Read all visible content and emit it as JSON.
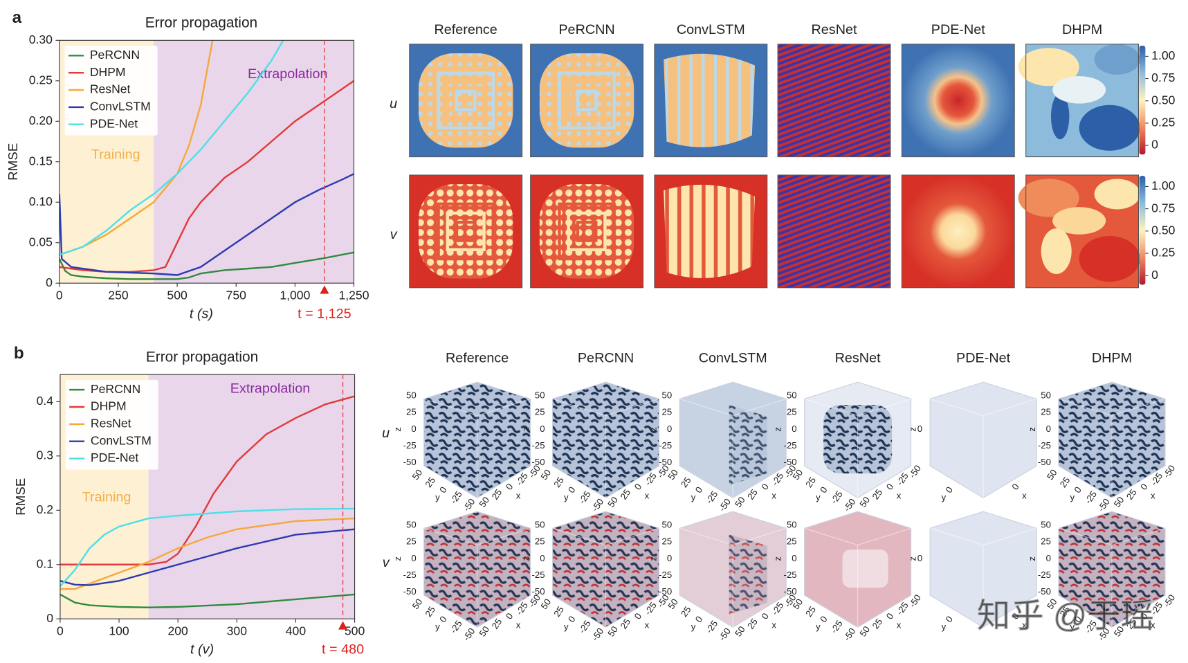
{
  "panel_labels": [
    "a",
    "b"
  ],
  "chart_data": [
    {
      "type": "line",
      "title": "Error propagation",
      "xlabel": "t (s)",
      "ylabel": "RMSE",
      "xlim": [
        0,
        1250
      ],
      "ylim": [
        0,
        0.3
      ],
      "xticks": [
        0,
        250,
        500,
        750,
        {
          "value": 1000,
          "label": "1,000"
        },
        {
          "value": 1250,
          "label": "1,250"
        }
      ],
      "yticks": [
        0,
        0.05,
        {
          "value": 0.1,
          "label": "0.10"
        },
        0.15,
        {
          "value": 0.2,
          "label": "0.20"
        },
        0.25,
        {
          "value": 0.3,
          "label": "0.30"
        }
      ],
      "legend": "upper left",
      "regions": [
        {
          "label": "Training",
          "x": [
            0,
            400
          ],
          "color": "#fdf0d3"
        },
        {
          "label": "Extrapolation",
          "x": [
            400,
            1250
          ],
          "color": "#ead6ea"
        }
      ],
      "annotations": [
        {
          "text": "t = 1,125",
          "x": 1125
        }
      ],
      "series": [
        {
          "name": "PeRCNN",
          "color": "#2e8b3e",
          "x": [
            0,
            25,
            50,
            100,
            200,
            300,
            400,
            500,
            550,
            600,
            700,
            800,
            900,
            1000,
            1125,
            1250
          ],
          "values": [
            0.03,
            0.015,
            0.01,
            0.008,
            0.006,
            0.005,
            0.005,
            0.005,
            0.007,
            0.012,
            0.016,
            0.018,
            0.02,
            0.025,
            0.031,
            0.038
          ]
        },
        {
          "name": "DHPM",
          "color": "#e03a3a",
          "x": [
            0,
            100,
            200,
            300,
            400,
            450,
            500,
            550,
            600,
            700,
            800,
            900,
            1000,
            1100,
            1200,
            1250
          ],
          "values": [
            0.02,
            0.016,
            0.014,
            0.014,
            0.016,
            0.02,
            0.05,
            0.08,
            0.1,
            0.13,
            0.15,
            0.175,
            0.2,
            0.22,
            0.24,
            0.25
          ]
        },
        {
          "name": "ResNet",
          "color": "#f5a83a",
          "x": [
            0,
            100,
            200,
            300,
            400,
            500,
            550,
            600,
            650
          ],
          "values": [
            0.035,
            0.045,
            0.06,
            0.08,
            0.1,
            0.135,
            0.17,
            0.22,
            0.3
          ]
        },
        {
          "name": "ConvLSTM",
          "color": "#2b3bb0",
          "x": [
            0,
            10,
            50,
            200,
            400,
            500,
            600,
            700,
            800,
            900,
            1000,
            1100,
            1200,
            1250
          ],
          "values": [
            0.11,
            0.03,
            0.02,
            0.014,
            0.012,
            0.01,
            0.02,
            0.04,
            0.06,
            0.08,
            0.1,
            0.115,
            0.128,
            0.135
          ]
        },
        {
          "name": "PDE-Net",
          "color": "#4de0e8",
          "x": [
            0,
            100,
            200,
            300,
            400,
            500,
            600,
            700,
            800,
            900,
            950
          ],
          "values": [
            0.035,
            0.045,
            0.065,
            0.09,
            0.11,
            0.135,
            0.165,
            0.2,
            0.235,
            0.275,
            0.3
          ]
        }
      ]
    },
    {
      "type": "line",
      "title": "Error propagation",
      "xlabel": "t (v)",
      "ylabel": "RMSE",
      "xlim": [
        0,
        500
      ],
      "ylim": [
        0,
        0.45
      ],
      "xticks": [
        0,
        100,
        200,
        300,
        400,
        500
      ],
      "yticks": [
        0,
        0.1,
        0.2,
        0.3,
        0.4
      ],
      "legend": "upper left",
      "regions": [
        {
          "label": "Training",
          "x": [
            0,
            150
          ],
          "color": "#fdf0d3"
        },
        {
          "label": "Extrapolation",
          "x": [
            150,
            500
          ],
          "color": "#ead6ea"
        }
      ],
      "annotations": [
        {
          "text": "t = 480",
          "x": 480
        }
      ],
      "series": [
        {
          "name": "PeRCNN",
          "color": "#2e8b3e",
          "x": [
            0,
            25,
            50,
            100,
            150,
            200,
            300,
            400,
            500
          ],
          "values": [
            0.045,
            0.03,
            0.025,
            0.022,
            0.021,
            0.022,
            0.027,
            0.036,
            0.045
          ]
        },
        {
          "name": "DHPM",
          "color": "#e03a3a",
          "x": [
            0,
            100,
            150,
            180,
            200,
            230,
            260,
            300,
            350,
            400,
            450,
            500
          ],
          "values": [
            0.1,
            0.1,
            0.1,
            0.105,
            0.12,
            0.17,
            0.23,
            0.29,
            0.34,
            0.37,
            0.395,
            0.41
          ]
        },
        {
          "name": "ResNet",
          "color": "#f5a83a",
          "x": [
            0,
            25,
            50,
            100,
            150,
            200,
            250,
            300,
            400,
            500
          ],
          "values": [
            0.055,
            0.055,
            0.065,
            0.085,
            0.105,
            0.13,
            0.15,
            0.165,
            0.18,
            0.185
          ]
        },
        {
          "name": "ConvLSTM",
          "color": "#2b3bb0",
          "x": [
            0,
            25,
            50,
            100,
            150,
            200,
            250,
            300,
            400,
            500
          ],
          "values": [
            0.07,
            0.063,
            0.062,
            0.07,
            0.085,
            0.1,
            0.115,
            0.13,
            0.155,
            0.165
          ]
        },
        {
          "name": "PDE-Net",
          "color": "#4de0e8",
          "x": [
            0,
            25,
            50,
            75,
            100,
            150,
            200,
            300,
            400,
            500
          ],
          "values": [
            0.06,
            0.09,
            0.13,
            0.155,
            0.17,
            0.185,
            0.19,
            0.198,
            0.202,
            0.203
          ]
        }
      ]
    }
  ],
  "heatmaps": {
    "columns": [
      "Reference",
      "PeRCNN",
      "ConvLSTM",
      "ResNet",
      "PDE-Net",
      "DHPM"
    ],
    "rows": [
      "u",
      "v"
    ],
    "colorbar_ticks": [
      {
        "value": 1,
        "label": "1.00"
      },
      0.75,
      {
        "value": 0.5,
        "label": "0.50"
      },
      0.25,
      0
    ]
  },
  "volumes": {
    "columns": [
      "Reference",
      "PeRCNN",
      "ConvLSTM",
      "ResNet",
      "PDE-Net",
      "DHPM"
    ],
    "rows": [
      "u",
      "v"
    ],
    "cube_ticks": [
      50,
      25,
      0,
      -25,
      -50
    ],
    "cube_axis_labels": [
      "z",
      "y",
      "x"
    ]
  },
  "watermark": "知乎 @于瑶"
}
